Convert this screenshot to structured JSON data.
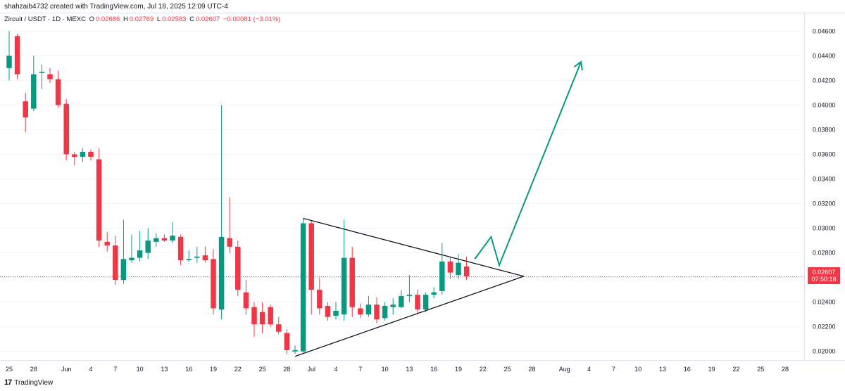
{
  "header": {
    "author_line": "shahzaib4732 created with TradingView.com, Jul 18, 2025 12:09 UTC-4"
  },
  "symbol": {
    "name": "Zircuit / USDT · 1D · MEXC",
    "open_label": "O",
    "open": "0.02686",
    "high_label": "H",
    "high": "0.02769",
    "low_label": "L",
    "low": "0.02583",
    "close_label": "C",
    "close": "0.02607",
    "change": "−0.00081 (−3.01%)"
  },
  "price_tag": {
    "price": "0.02607",
    "countdown": "07:50:18"
  },
  "footer": {
    "logo_text": "TradingView"
  },
  "colors": {
    "up": "#089981",
    "down": "#f23645",
    "arrow": "#089981",
    "trendline": "#131722",
    "grid": "#f0f3fa"
  },
  "chart_data": {
    "type": "candlestick",
    "ylim": [
      0.0193,
      0.0475
    ],
    "y_ticks": [
      "0.04600",
      "0.04400",
      "0.04200",
      "0.04000",
      "0.03800",
      "0.03600",
      "0.03400",
      "0.03200",
      "0.03000",
      "0.02800",
      "0.02600",
      "0.02400",
      "0.02200",
      "0.02000"
    ],
    "y_tick_values": [
      0.046,
      0.044,
      0.042,
      0.04,
      0.038,
      0.036,
      0.034,
      0.032,
      0.03,
      0.028,
      0.026,
      0.024,
      0.022,
      0.02
    ],
    "x_ticks": [
      {
        "label": "25",
        "day": 0
      },
      {
        "label": "28",
        "day": 3
      },
      {
        "label": "Jun",
        "day": 7
      },
      {
        "label": "4",
        "day": 10
      },
      {
        "label": "7",
        "day": 13
      },
      {
        "label": "10",
        "day": 16
      },
      {
        "label": "13",
        "day": 19
      },
      {
        "label": "16",
        "day": 22
      },
      {
        "label": "19",
        "day": 25
      },
      {
        "label": "22",
        "day": 28
      },
      {
        "label": "25",
        "day": 31
      },
      {
        "label": "28",
        "day": 34
      },
      {
        "label": "Jul",
        "day": 37
      },
      {
        "label": "4",
        "day": 40
      },
      {
        "label": "7",
        "day": 43
      },
      {
        "label": "10",
        "day": 46
      },
      {
        "label": "13",
        "day": 49
      },
      {
        "label": "16",
        "day": 52
      },
      {
        "label": "19",
        "day": 55
      },
      {
        "label": "22",
        "day": 58
      },
      {
        "label": "25",
        "day": 61
      },
      {
        "label": "28",
        "day": 64
      },
      {
        "label": "Aug",
        "day": 68
      },
      {
        "label": "4",
        "day": 71
      },
      {
        "label": "7",
        "day": 74
      },
      {
        "label": "10",
        "day": 77
      },
      {
        "label": "13",
        "day": 80
      },
      {
        "label": "16",
        "day": 83
      },
      {
        "label": "19",
        "day": 86
      },
      {
        "label": "22",
        "day": 89
      },
      {
        "label": "25",
        "day": 92
      },
      {
        "label": "28",
        "day": 95
      }
    ],
    "candles": [
      {
        "d": 0,
        "o": 0.043,
        "h": 0.046,
        "l": 0.042,
        "c": 0.044
      },
      {
        "d": 1,
        "o": 0.0456,
        "h": 0.0458,
        "l": 0.0421,
        "c": 0.0425
      },
      {
        "d": 2,
        "o": 0.0403,
        "h": 0.041,
        "l": 0.0378,
        "c": 0.039
      },
      {
        "d": 3,
        "o": 0.0397,
        "h": 0.044,
        "l": 0.0395,
        "c": 0.0425
      },
      {
        "d": 4,
        "o": 0.0426,
        "h": 0.0433,
        "l": 0.0413,
        "c": 0.0427
      },
      {
        "d": 5,
        "o": 0.0425,
        "h": 0.043,
        "l": 0.0418,
        "c": 0.0421
      },
      {
        "d": 6,
        "o": 0.0421,
        "h": 0.0428,
        "l": 0.0398,
        "c": 0.04
      },
      {
        "d": 7,
        "o": 0.0401,
        "h": 0.0405,
        "l": 0.0355,
        "c": 0.036
      },
      {
        "d": 8,
        "o": 0.036,
        "h": 0.0362,
        "l": 0.0351,
        "c": 0.0358
      },
      {
        "d": 9,
        "o": 0.0358,
        "h": 0.0365,
        "l": 0.0354,
        "c": 0.0362
      },
      {
        "d": 10,
        "o": 0.0362,
        "h": 0.0364,
        "l": 0.0355,
        "c": 0.0358
      },
      {
        "d": 11,
        "o": 0.0356,
        "h": 0.0365,
        "l": 0.0285,
        "c": 0.029
      },
      {
        "d": 12,
        "o": 0.0289,
        "h": 0.0297,
        "l": 0.0281,
        "c": 0.0286
      },
      {
        "d": 13,
        "o": 0.0286,
        "h": 0.0294,
        "l": 0.0254,
        "c": 0.0258
      },
      {
        "d": 14,
        "o": 0.0258,
        "h": 0.0307,
        "l": 0.0255,
        "c": 0.0275
      },
      {
        "d": 15,
        "o": 0.0274,
        "h": 0.0295,
        "l": 0.0272,
        "c": 0.0276
      },
      {
        "d": 16,
        "o": 0.0276,
        "h": 0.0298,
        "l": 0.0273,
        "c": 0.0282
      },
      {
        "d": 17,
        "o": 0.028,
        "h": 0.03,
        "l": 0.0275,
        "c": 0.029
      },
      {
        "d": 18,
        "o": 0.0289,
        "h": 0.0296,
        "l": 0.0285,
        "c": 0.0292
      },
      {
        "d": 19,
        "o": 0.0292,
        "h": 0.0295,
        "l": 0.0289,
        "c": 0.029
      },
      {
        "d": 20,
        "o": 0.029,
        "h": 0.0305,
        "l": 0.0288,
        "c": 0.0294
      },
      {
        "d": 21,
        "o": 0.0293,
        "h": 0.0295,
        "l": 0.027,
        "c": 0.0274
      },
      {
        "d": 22,
        "o": 0.0274,
        "h": 0.0282,
        "l": 0.0273,
        "c": 0.0275
      },
      {
        "d": 23,
        "o": 0.0276,
        "h": 0.0285,
        "l": 0.0272,
        "c": 0.0277
      },
      {
        "d": 24,
        "o": 0.0278,
        "h": 0.0285,
        "l": 0.0272,
        "c": 0.0274
      },
      {
        "d": 25,
        "o": 0.0275,
        "h": 0.0283,
        "l": 0.023,
        "c": 0.0235
      },
      {
        "d": 26,
        "o": 0.0234,
        "h": 0.04,
        "l": 0.0226,
        "c": 0.0293
      },
      {
        "d": 27,
        "o": 0.0292,
        "h": 0.0325,
        "l": 0.028,
        "c": 0.0285
      },
      {
        "d": 28,
        "o": 0.0285,
        "h": 0.029,
        "l": 0.0245,
        "c": 0.025
      },
      {
        "d": 29,
        "o": 0.0248,
        "h": 0.0258,
        "l": 0.023,
        "c": 0.0235
      },
      {
        "d": 30,
        "o": 0.0236,
        "h": 0.024,
        "l": 0.0212,
        "c": 0.0222
      },
      {
        "d": 31,
        "o": 0.0232,
        "h": 0.024,
        "l": 0.0215,
        "c": 0.0222
      },
      {
        "d": 32,
        "o": 0.0236,
        "h": 0.0238,
        "l": 0.022,
        "c": 0.0222
      },
      {
        "d": 33,
        "o": 0.0222,
        "h": 0.0228,
        "l": 0.0214,
        "c": 0.0216
      },
      {
        "d": 34,
        "o": 0.0215,
        "h": 0.0218,
        "l": 0.0198,
        "c": 0.0201
      },
      {
        "d": 35,
        "o": 0.02,
        "h": 0.0205,
        "l": 0.0198,
        "c": 0.0201
      },
      {
        "d": 36,
        "o": 0.02,
        "h": 0.0308,
        "l": 0.0199,
        "c": 0.0304
      },
      {
        "d": 37,
        "o": 0.0304,
        "h": 0.0306,
        "l": 0.023,
        "c": 0.025
      },
      {
        "d": 38,
        "o": 0.025,
        "h": 0.026,
        "l": 0.023,
        "c": 0.0235
      },
      {
        "d": 39,
        "o": 0.0237,
        "h": 0.024,
        "l": 0.0225,
        "c": 0.0228
      },
      {
        "d": 40,
        "o": 0.0229,
        "h": 0.024,
        "l": 0.0226,
        "c": 0.0233
      },
      {
        "d": 41,
        "o": 0.023,
        "h": 0.0307,
        "l": 0.0225,
        "c": 0.0276
      },
      {
        "d": 42,
        "o": 0.0276,
        "h": 0.0285,
        "l": 0.0228,
        "c": 0.0236
      },
      {
        "d": 43,
        "o": 0.0235,
        "h": 0.0239,
        "l": 0.0227,
        "c": 0.023
      },
      {
        "d": 44,
        "o": 0.023,
        "h": 0.0245,
        "l": 0.0228,
        "c": 0.0238
      },
      {
        "d": 45,
        "o": 0.0238,
        "h": 0.0244,
        "l": 0.0223,
        "c": 0.0226
      },
      {
        "d": 46,
        "o": 0.0227,
        "h": 0.024,
        "l": 0.0225,
        "c": 0.0237
      },
      {
        "d": 47,
        "o": 0.0236,
        "h": 0.0243,
        "l": 0.023,
        "c": 0.0238
      },
      {
        "d": 48,
        "o": 0.0236,
        "h": 0.025,
        "l": 0.0235,
        "c": 0.0245
      },
      {
        "d": 49,
        "o": 0.0245,
        "h": 0.0262,
        "l": 0.024,
        "c": 0.0246
      },
      {
        "d": 50,
        "o": 0.0246,
        "h": 0.025,
        "l": 0.023,
        "c": 0.0234
      },
      {
        "d": 51,
        "o": 0.0234,
        "h": 0.0248,
        "l": 0.0232,
        "c": 0.0246
      },
      {
        "d": 52,
        "o": 0.0246,
        "h": 0.0252,
        "l": 0.0243,
        "c": 0.0248
      },
      {
        "d": 53,
        "o": 0.0249,
        "h": 0.0288,
        "l": 0.0246,
        "c": 0.0273
      },
      {
        "d": 54,
        "o": 0.0273,
        "h": 0.0276,
        "l": 0.0259,
        "c": 0.0264
      },
      {
        "d": 55,
        "o": 0.0262,
        "h": 0.0279,
        "l": 0.0259,
        "c": 0.0272
      },
      {
        "d": 56,
        "o": 0.0269,
        "h": 0.0277,
        "l": 0.0258,
        "c": 0.0261
      }
    ],
    "trendlines": [
      {
        "name": "upper",
        "from": {
          "d": 36,
          "y": 0.0308
        },
        "to": {
          "d": 63,
          "y": 0.0261
        }
      },
      {
        "name": "lower",
        "from": {
          "d": 35,
          "y": 0.0196
        },
        "to": {
          "d": 63,
          "y": 0.0261
        }
      }
    ],
    "projection_path": [
      {
        "d": 57,
        "y": 0.0275
      },
      {
        "d": 59,
        "y": 0.0293
      },
      {
        "d": 60,
        "y": 0.027
      },
      {
        "d": 70,
        "y": 0.0435
      }
    ],
    "last_price": 0.02607
  }
}
